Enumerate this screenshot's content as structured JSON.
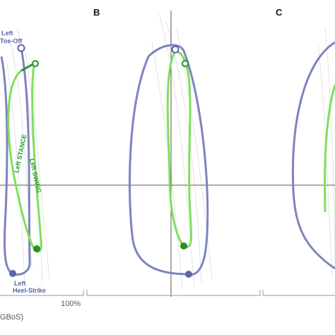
{
  "panels": {
    "b": "B",
    "c": "C"
  },
  "annotations": {
    "toe_off_1": "Left",
    "toe_off_2": "Toe-Off",
    "heel_strike_1": "Left",
    "heel_strike_2": "Heel-Strike",
    "stance": "Left STANCE",
    "swing": "Left SWING"
  },
  "axis": {
    "tick_label": "100%",
    "label": "GBoS)"
  }
}
